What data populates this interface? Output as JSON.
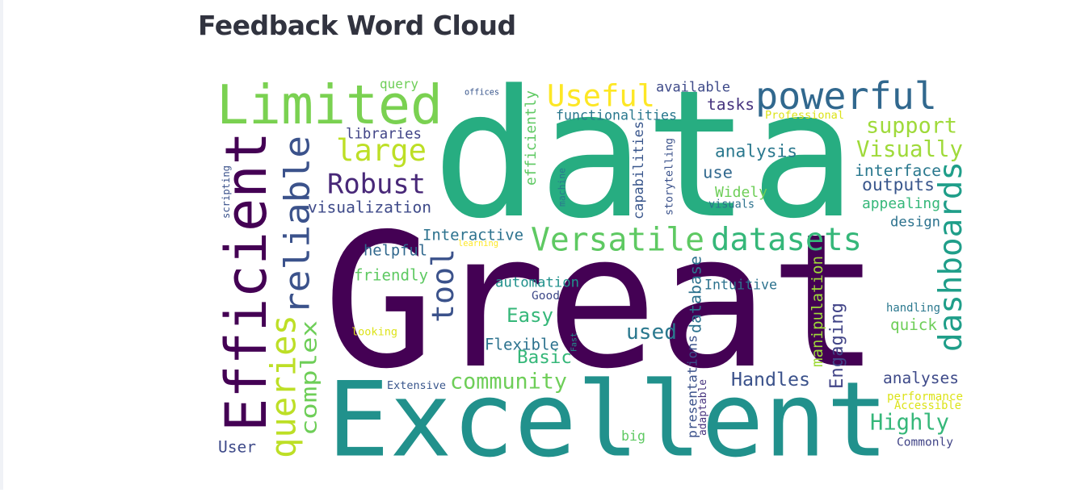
{
  "page": {
    "title": "Feedback Word Cloud"
  },
  "cloud": {
    "words": [
      {
        "text": "data",
        "color": "#27ad81"
      },
      {
        "text": "Great",
        "color": "#440154"
      },
      {
        "text": "Excellent",
        "color": "#21918c"
      },
      {
        "text": "Limited",
        "color": "#7ad151"
      },
      {
        "text": "powerful",
        "color": "#31688e"
      },
      {
        "text": "Efficient",
        "color": "#440154"
      },
      {
        "text": "reliable",
        "color": "#3b528b"
      },
      {
        "text": "Useful",
        "color": "#fde725"
      },
      {
        "text": "large",
        "color": "#bddf26"
      },
      {
        "text": "Robust",
        "color": "#482878"
      },
      {
        "text": "Versatile",
        "color": "#5ec962"
      },
      {
        "text": "datasets",
        "color": "#35b779"
      },
      {
        "text": "dashboards",
        "color": "#1f9e89"
      },
      {
        "text": "tool",
        "color": "#3b528b"
      },
      {
        "text": "queries",
        "color": "#bddf26"
      },
      {
        "text": "complex",
        "color": "#6ece58"
      },
      {
        "text": "support",
        "color": "#9fda3a"
      },
      {
        "text": "Visually",
        "color": "#9fda3a"
      },
      {
        "text": "interface",
        "color": "#2a788e"
      },
      {
        "text": "outputs",
        "color": "#39568c"
      },
      {
        "text": "appealing",
        "color": "#35b779"
      },
      {
        "text": "design",
        "color": "#2c728e"
      },
      {
        "text": "analysis",
        "color": "#2a788e"
      },
      {
        "text": "use",
        "color": "#31688e"
      },
      {
        "text": "Widely",
        "color": "#6ece58"
      },
      {
        "text": "visuals",
        "color": "#2c728e"
      },
      {
        "text": "storytelling",
        "color": "#3b528b"
      },
      {
        "text": "capabilities",
        "color": "#39568c"
      },
      {
        "text": "machine",
        "color": "#2a788e"
      },
      {
        "text": "efficiently",
        "color": "#5ec962"
      },
      {
        "text": "functionalities",
        "color": "#2a788e"
      },
      {
        "text": "tasks",
        "color": "#46337e"
      },
      {
        "text": "available",
        "color": "#3e4a89"
      },
      {
        "text": "Professional",
        "color": "#dce319"
      },
      {
        "text": "offices",
        "color": "#39568c"
      },
      {
        "text": "query",
        "color": "#6ece58"
      },
      {
        "text": "libraries",
        "color": "#414487"
      },
      {
        "text": "scripting",
        "color": "#3b528b"
      },
      {
        "text": "visualization",
        "color": "#3e4a89"
      },
      {
        "text": "Interactive",
        "color": "#2c728e"
      },
      {
        "text": "learning",
        "color": "#fde725"
      },
      {
        "text": "helpful",
        "color": "#31688e"
      },
      {
        "text": "friendly",
        "color": "#5ec962"
      },
      {
        "text": "automation",
        "color": "#21918c"
      },
      {
        "text": "Good",
        "color": "#3e4a89"
      },
      {
        "text": "Easy",
        "color": "#35b779"
      },
      {
        "text": "used",
        "color": "#2a788e"
      },
      {
        "text": "Basic",
        "color": "#35b779"
      },
      {
        "text": "community",
        "color": "#6ece58"
      },
      {
        "text": "Handles",
        "color": "#3b528b"
      },
      {
        "text": "Engaging",
        "color": "#414487"
      },
      {
        "text": "Intuitive",
        "color": "#2c728e"
      },
      {
        "text": "database",
        "color": "#2c728e"
      },
      {
        "text": "manipulation",
        "color": "#9fda3a"
      },
      {
        "text": "quick",
        "color": "#6ece58"
      },
      {
        "text": "handling",
        "color": "#2a788e"
      },
      {
        "text": "analyses",
        "color": "#3e4a89"
      },
      {
        "text": "performance",
        "color": "#dce319"
      },
      {
        "text": "Accessible",
        "color": "#dce319"
      },
      {
        "text": "Highly",
        "color": "#35b779"
      },
      {
        "text": "Commonly",
        "color": "#414487"
      },
      {
        "text": "looking",
        "color": "#dce319"
      },
      {
        "text": "Flexible",
        "color": "#2c728e"
      },
      {
        "text": "Fast",
        "color": "#21918c"
      },
      {
        "text": "Extensive",
        "color": "#39568c"
      },
      {
        "text": "presentations",
        "color": "#3b528b"
      },
      {
        "text": "adaptable",
        "color": "#46337e"
      },
      {
        "text": "big",
        "color": "#5ec962"
      },
      {
        "text": "User",
        "color": "#3e4a89"
      }
    ]
  }
}
